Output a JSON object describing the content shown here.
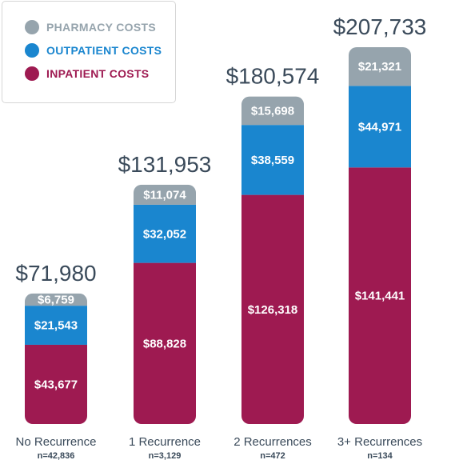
{
  "chart_data": {
    "type": "bar",
    "stacked": true,
    "categories": [
      "No Recurrence",
      "1 Recurrence",
      "2 Recurrences",
      "3+ Recurrences"
    ],
    "sample_sizes": [
      "n=42,836",
      "n=3,129",
      "n=472",
      "n=134"
    ],
    "totals": [
      71980,
      131953,
      180574,
      207733
    ],
    "total_labels": [
      "$71,980",
      "$131,953",
      "$180,574",
      "$207,733"
    ],
    "series": [
      {
        "name": "INPATIENT COSTS",
        "color": "#9e1a51",
        "values": [
          43677,
          88828,
          126318,
          141441
        ],
        "labels": [
          "$43,677",
          "$88,828",
          "$126,318",
          "$141,441"
        ]
      },
      {
        "name": "OUTPATIENT COSTS",
        "color": "#1a86cf",
        "values": [
          21543,
          32052,
          38559,
          44971
        ],
        "labels": [
          "$21,543",
          "$32,052",
          "$38,559",
          "$44,971"
        ]
      },
      {
        "name": "PHARMACY COSTS",
        "color": "#96a4ad",
        "values": [
          6759,
          11074,
          15698,
          21321
        ],
        "labels": [
          "$6,759",
          "$11,074",
          "$15,698",
          "$21,321"
        ]
      }
    ],
    "legend_position": "top-left",
    "grid": false
  }
}
